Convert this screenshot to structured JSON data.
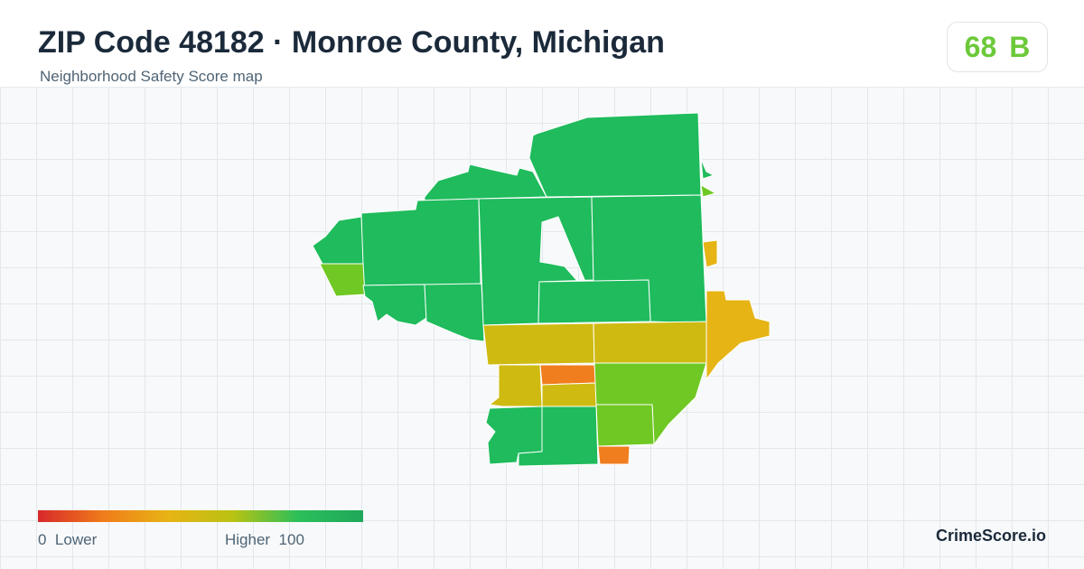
{
  "header": {
    "title": "ZIP Code 48182 · Monroe County, Michigan",
    "subtitle": "Neighborhood Safety Score map"
  },
  "score": {
    "value": "68",
    "grade": "B",
    "color": "#6cc93a"
  },
  "legend": {
    "min_value": "0",
    "min_label": "Lower",
    "max_label": "Higher",
    "max_value": "100",
    "colors": [
      "#d7282b",
      "#f07c1a",
      "#e8b315",
      "#b9c212",
      "#2bbf5a",
      "#1fa85a"
    ]
  },
  "brand": "CrimeScore.io",
  "palette": {
    "high": "#1fbb5c",
    "good": "#6fc823",
    "mid": "#cfba12",
    "amber": "#e6b414",
    "low": "#f07e1e"
  }
}
